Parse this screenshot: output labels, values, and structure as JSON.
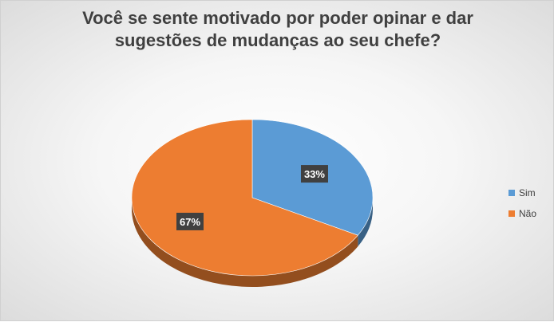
{
  "chart_data": {
    "type": "pie",
    "title": "Você se sente motivado por poder opinar e dar sugestões de mudanças ao seu chefe?",
    "categories": [
      "Sim",
      "Não"
    ],
    "values": [
      33,
      67
    ],
    "data_labels": [
      "33%",
      "67%"
    ],
    "colors": [
      "#5B9BD5",
      "#ED7D31"
    ],
    "legend_position": "right",
    "style": "3d"
  }
}
